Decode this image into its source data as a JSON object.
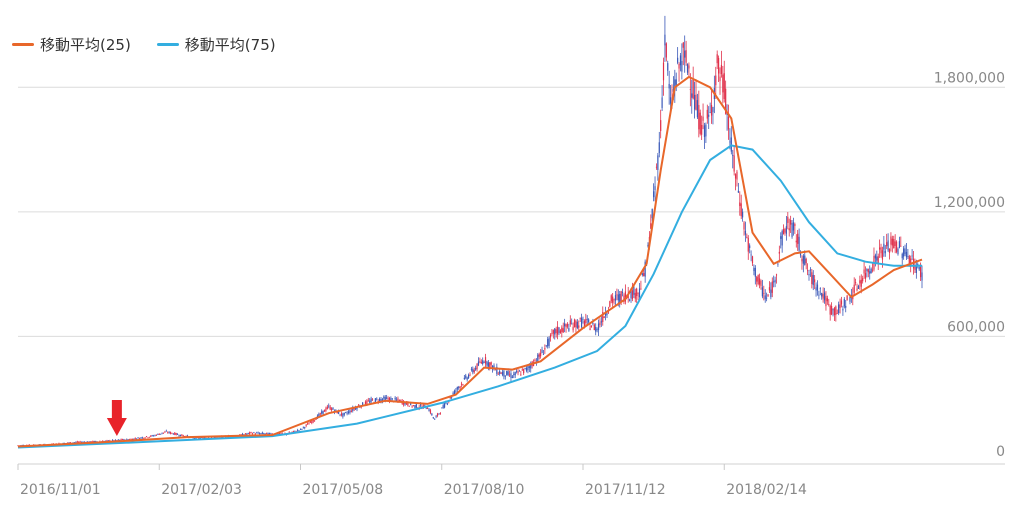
{
  "chart_data": {
    "type": "candlestick",
    "legend_position": "top-left",
    "grid": "horizontal",
    "ylim": [
      0,
      2100000
    ],
    "y_ticks": [
      "0",
      "600,000",
      "1,200,000",
      "1,800,000"
    ],
    "y_tick_values": [
      0,
      600000,
      1200000,
      1800000
    ],
    "x_ticks": [
      "2016/11/01",
      "2017/02/03",
      "2017/05/08",
      "2017/08/10",
      "2017/11/12",
      "2018/02/14"
    ],
    "series": [
      {
        "name": "移動平均(25)",
        "color": "#e8672a"
      },
      {
        "name": "移動平均(75)",
        "color": "#33aee0"
      }
    ],
    "close_series": [
      [
        0,
        75000
      ],
      [
        20,
        78000
      ],
      [
        40,
        90000
      ],
      [
        60,
        95000
      ],
      [
        80,
        105000
      ],
      [
        95,
        120000
      ],
      [
        105,
        140000
      ],
      [
        115,
        125000
      ],
      [
        125,
        110000
      ],
      [
        140,
        115000
      ],
      [
        155,
        120000
      ],
      [
        165,
        135000
      ],
      [
        180,
        130000
      ],
      [
        190,
        130000
      ],
      [
        200,
        150000
      ],
      [
        210,
        200000
      ],
      [
        220,
        260000
      ],
      [
        230,
        220000
      ],
      [
        240,
        260000
      ],
      [
        250,
        290000
      ],
      [
        260,
        300000
      ],
      [
        270,
        290000
      ],
      [
        280,
        265000
      ],
      [
        290,
        260000
      ],
      [
        295,
        200000
      ],
      [
        300,
        250000
      ],
      [
        310,
        340000
      ],
      [
        320,
        420000
      ],
      [
        330,
        490000
      ],
      [
        340,
        430000
      ],
      [
        350,
        410000
      ],
      [
        360,
        440000
      ],
      [
        370,
        510000
      ],
      [
        380,
        620000
      ],
      [
        390,
        650000
      ],
      [
        400,
        670000
      ],
      [
        410,
        640000
      ],
      [
        420,
        770000
      ],
      [
        430,
        800000
      ],
      [
        440,
        820000
      ],
      [
        445,
        950000
      ],
      [
        450,
        1250000
      ],
      [
        455,
        1600000
      ],
      [
        458,
        2050000
      ],
      [
        462,
        1700000
      ],
      [
        466,
        1850000
      ],
      [
        470,
        1950000
      ],
      [
        475,
        1900000
      ],
      [
        480,
        1700000
      ],
      [
        485,
        1600000
      ],
      [
        490,
        1650000
      ],
      [
        495,
        1900000
      ],
      [
        500,
        1800000
      ],
      [
        505,
        1500000
      ],
      [
        510,
        1300000
      ],
      [
        515,
        1100000
      ],
      [
        520,
        950000
      ],
      [
        525,
        850000
      ],
      [
        530,
        780000
      ],
      [
        535,
        850000
      ],
      [
        540,
        1050000
      ],
      [
        545,
        1150000
      ],
      [
        550,
        1100000
      ],
      [
        555,
        1000000
      ],
      [
        560,
        900000
      ],
      [
        565,
        850000
      ],
      [
        570,
        800000
      ],
      [
        575,
        730000
      ],
      [
        580,
        720000
      ],
      [
        590,
        800000
      ],
      [
        600,
        900000
      ],
      [
        610,
        1000000
      ],
      [
        620,
        1050000
      ],
      [
        630,
        990000
      ],
      [
        640,
        900000
      ]
    ],
    "ma25": [
      [
        0,
        70000
      ],
      [
        60,
        90000
      ],
      [
        120,
        115000
      ],
      [
        180,
        125000
      ],
      [
        220,
        230000
      ],
      [
        260,
        290000
      ],
      [
        290,
        275000
      ],
      [
        310,
        320000
      ],
      [
        330,
        450000
      ],
      [
        350,
        440000
      ],
      [
        370,
        480000
      ],
      [
        400,
        640000
      ],
      [
        430,
        780000
      ],
      [
        445,
        950000
      ],
      [
        455,
        1400000
      ],
      [
        465,
        1800000
      ],
      [
        475,
        1850000
      ],
      [
        490,
        1800000
      ],
      [
        505,
        1650000
      ],
      [
        520,
        1100000
      ],
      [
        535,
        950000
      ],
      [
        550,
        1000000
      ],
      [
        560,
        1010000
      ],
      [
        575,
        900000
      ],
      [
        590,
        790000
      ],
      [
        605,
        850000
      ],
      [
        620,
        920000
      ],
      [
        640,
        970000
      ]
    ],
    "ma75": [
      [
        0,
        65000
      ],
      [
        100,
        95000
      ],
      [
        180,
        120000
      ],
      [
        240,
        180000
      ],
      [
        300,
        280000
      ],
      [
        340,
        360000
      ],
      [
        380,
        450000
      ],
      [
        410,
        530000
      ],
      [
        430,
        650000
      ],
      [
        450,
        900000
      ],
      [
        470,
        1200000
      ],
      [
        490,
        1450000
      ],
      [
        505,
        1520000
      ],
      [
        520,
        1500000
      ],
      [
        540,
        1350000
      ],
      [
        560,
        1150000
      ],
      [
        580,
        1000000
      ],
      [
        600,
        960000
      ],
      [
        620,
        940000
      ],
      [
        640,
        940000
      ]
    ],
    "x_range": [
      0,
      640
    ],
    "x_tick_positions": [
      0,
      100,
      200,
      300,
      400,
      500
    ],
    "annotation_arrow_at_x": 70
  }
}
